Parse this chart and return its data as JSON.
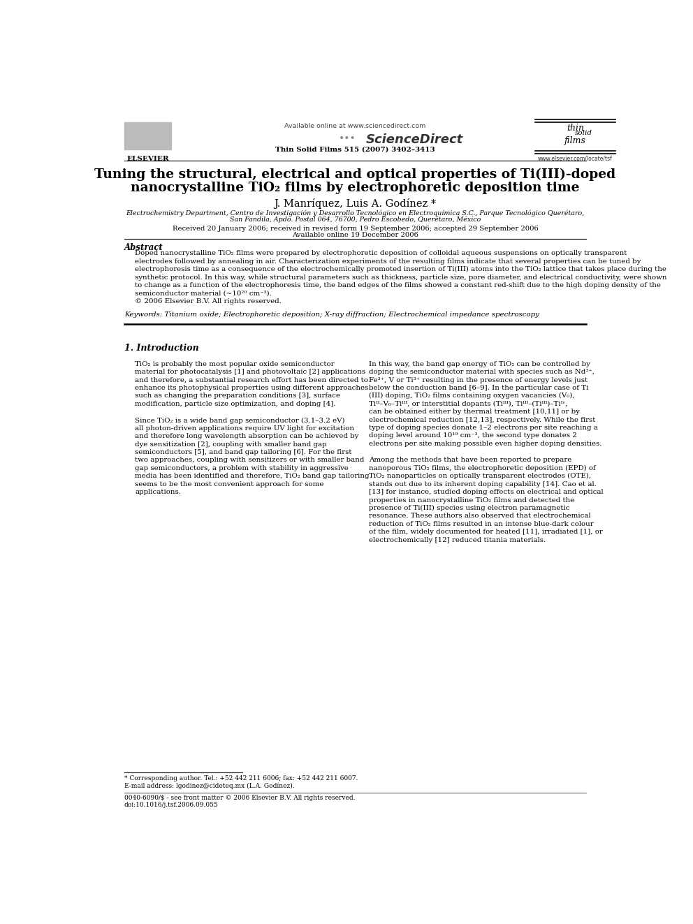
{
  "bg_color": "#ffffff",
  "page_width": 9.92,
  "page_height": 13.23,
  "header_available_online": "Available online at www.sciencedirect.com",
  "header_journal_info": "Thin Solid Films 515 (2007) 3402–3413",
  "elsevier_text": "ELSEVIER",
  "sciencedirect_text": "ScienceDirect",
  "tsf_url": "www.elsevier.com/locate/tsf",
  "title_line1": "Tuning the structural, electrical and optical properties of Ti(III)-doped",
  "title_line2": "nanocrystalline TiO₂ films by electrophoretic deposition time",
  "authors": "J. Manríquez, Luis A. Godínez *",
  "affiliation_line1": "Electrochemistry Department, Centro de Investigación y Desarrollo Tecnológico en Electroquímica S.C., Parque Tecnológico Querétaro,",
  "affiliation_line2": "San Fandila, Apdo. Postal 064, 76700, Pedro Escobedo, Querétaro, México",
  "received_text": "Received 20 January 2006; received in revised form 19 September 2006; accepted 29 September 2006",
  "available_online": "Available online 19 December 2006",
  "abstract_title": "Abstract",
  "abstract_lines": [
    "Doped nanocrystalline TiO₂ films were prepared by electrophoretic deposition of colloidal aqueous suspensions on optically transparent",
    "electrodes followed by annealing in air. Characterization experiments of the resulting films indicate that several properties can be tuned by",
    "electrophoresis time as a consequence of the electrochemically promoted insertion of Ti(III) atoms into the TiO₂ lattice that takes place during the",
    "synthetic protocol. In this way, while structural parameters such as thickness, particle size, pore diameter, and electrical conductivity, were shown",
    "to change as a function of the electrophoresis time, the band edges of the films showed a constant red-shift due to the high doping density of the",
    "semiconductor material (~10²⁰ cm⁻³).",
    "© 2006 Elsevier B.V. All rights reserved."
  ],
  "keywords_label": "Keywords:",
  "keywords_text": "Titanium oxide; Electrophoretic deposition; X-ray diffraction; Electrochemical impedance spectroscopy",
  "intro_title": "1. Introduction",
  "intro_col1_lines1": [
    "TiO₂ is probably the most popular oxide semiconductor",
    "material for photocatalysis [1] and photovoltaic [2] applications",
    "and therefore, a substantial research effort has been directed to",
    "enhance its photophysical properties using different approaches",
    "such as changing the preparation conditions [3], surface",
    "modification, particle size optimization, and doping [4]."
  ],
  "intro_col1_lines2": [
    "Since TiO₂ is a wide band gap semiconductor (3.1–3.2 eV)",
    "all photon-driven applications require UV light for excitation",
    "and therefore long wavelength absorption can be achieved by",
    "dye sensitization [2], coupling with smaller band gap",
    "semiconductors [5], and band gap tailoring [6]. For the first",
    "two approaches, coupling with sensitizers or with smaller band",
    "gap semiconductors, a problem with stability in aggressive",
    "media has been identified and therefore, TiO₂ band gap tailoring",
    "seems to be the most convenient approach for some",
    "applications."
  ],
  "intro_col2_lines1": [
    "In this way, the band gap energy of TiO₂ can be controlled by",
    "doping the semiconductor material with species such as Nd³⁺,",
    "Fe³⁺, V or Ti³⁺ resulting in the presence of energy levels just",
    "below the conduction band [6–9]. In the particular case of Ti",
    "(III) doping, TiO₂ films containing oxygen vacancies (V₀),",
    "Tiᴵᴵ–V₀–Tiᴵᴵᴵ, or interstitial dopants (Tiᴵᴵᴵ), Tiᴵᴵᴵ–(Tiᴵᴵᴵ)–Tiᴵᵛ,",
    "can be obtained either by thermal treatment [10,11] or by",
    "electrochemical reduction [12,13], respectively. While the first",
    "type of doping species donate 1–2 electrons per site reaching a",
    "doping level around 10¹⁹ cm⁻³, the second type donates 2",
    "electrons per site making possible even higher doping densities."
  ],
  "intro_col2_lines2": [
    "Among the methods that have been reported to prepare",
    "nanoporous TiO₂ films, the electrophoretic deposition (EPD) of",
    "TiO₂ nanoparticles on optically transparent electrodes (OTE),",
    "stands out due to its inherent doping capability [14]. Cao et al.",
    "[13] for instance, studied doping effects on electrical and optical",
    "properties in nanocrystalline TiO₂ films and detected the",
    "presence of Ti(III) species using electron paramagnetic",
    "resonance. These authors also observed that electrochemical",
    "reduction of TiO₂ films resulted in an intense blue-dark colour",
    "of the film, widely documented for heated [11], irradiated [1], or",
    "electrochemically [12] reduced titania materials."
  ],
  "footnote_star": "* Corresponding author. Tel.: +52 442 211 6006; fax: +52 442 211 6007.",
  "footnote_email": "E-mail address: lgodinez@cideteq.mx (L.A. Godínez).",
  "footer_issn": "0040-6090/$ - see front matter © 2006 Elsevier B.V. All rights reserved.",
  "footer_doi": "doi:10.1016/j.tsf.2006.09.055"
}
